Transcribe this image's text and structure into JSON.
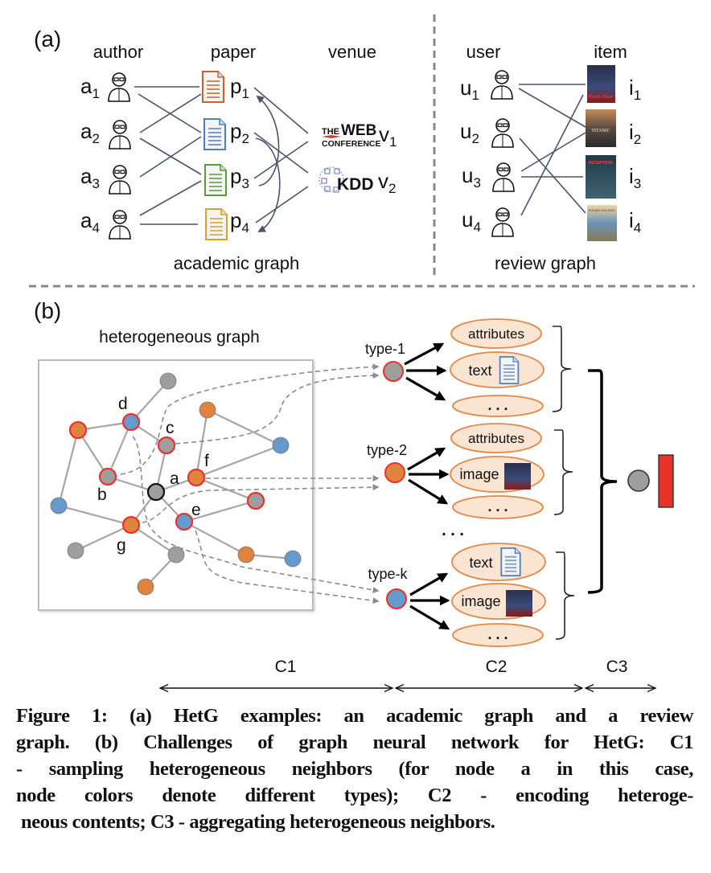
{
  "part_a": {
    "label": "(a)",
    "academic": {
      "headers": {
        "author": "author",
        "paper": "paper",
        "venue": "venue"
      },
      "authors": [
        {
          "base": "a",
          "sub": "1"
        },
        {
          "base": "a",
          "sub": "2"
        },
        {
          "base": "a",
          "sub": "3"
        },
        {
          "base": "a",
          "sub": "4"
        }
      ],
      "papers": [
        {
          "base": "p",
          "sub": "1"
        },
        {
          "base": "p",
          "sub": "2"
        },
        {
          "base": "p",
          "sub": "3"
        },
        {
          "base": "p",
          "sub": "4"
        }
      ],
      "venues": [
        {
          "base": "v",
          "sub": "1"
        },
        {
          "base": "v",
          "sub": "2"
        }
      ],
      "venue_logos": {
        "v1_top": "THE",
        "v1_main": "WEB",
        "v1_bottom": "CONFERENCE",
        "v2": "KDD"
      },
      "paper_colors": [
        "#c9652a",
        "#4f7fbf",
        "#5c9a3c",
        "#d9a12a"
      ],
      "caption": "academic graph"
    },
    "review": {
      "headers": {
        "user": "user",
        "item": "item"
      },
      "users": [
        {
          "base": "u",
          "sub": "1"
        },
        {
          "base": "u",
          "sub": "2"
        },
        {
          "base": "u",
          "sub": "3"
        },
        {
          "base": "u",
          "sub": "4"
        }
      ],
      "items": [
        {
          "base": "i",
          "sub": "1"
        },
        {
          "base": "i",
          "sub": "2"
        },
        {
          "base": "i",
          "sub": "3"
        },
        {
          "base": "i",
          "sub": "4"
        }
      ],
      "poster_text": [
        "Rush Hour",
        "TITANIC",
        "INCEPTION",
        "ROMAN HOLIDAY"
      ],
      "caption": "review graph"
    }
  },
  "part_b": {
    "label": "(b)",
    "graph_title": "heterogeneous graph",
    "node_labels": {
      "a": "a",
      "b": "b",
      "c": "c",
      "d": "d",
      "e": "e",
      "f": "f",
      "g": "g"
    },
    "node_colors": {
      "gray": "#9e9e9e",
      "orange": "#e0833f",
      "blue": "#6699cc",
      "highlight": "#e8332a"
    },
    "types": [
      "type-1",
      "type-2",
      "type-k"
    ],
    "contents": {
      "type1": [
        "attributes",
        "text",
        ". . ."
      ],
      "type2": [
        "attributes",
        "image",
        ". . ."
      ],
      "typek": [
        "text",
        "image",
        ". . ."
      ]
    },
    "more_types": ". . .",
    "output_color": "#e8332a",
    "challenges": [
      "C1",
      "C2",
      "C3"
    ]
  },
  "caption_lines": [
    "Figure 1: (a) HetG examples: an academic graph and a review",
    "graph. (b) Challenges of graph neural network for HetG: C1",
    "- sampling heterogeneous neighbors (for node a in this case,",
    "node colors denote different types); C2 - encoding heteroge-",
    "neous contents; C3 - aggregating heterogeneous neighbors."
  ]
}
